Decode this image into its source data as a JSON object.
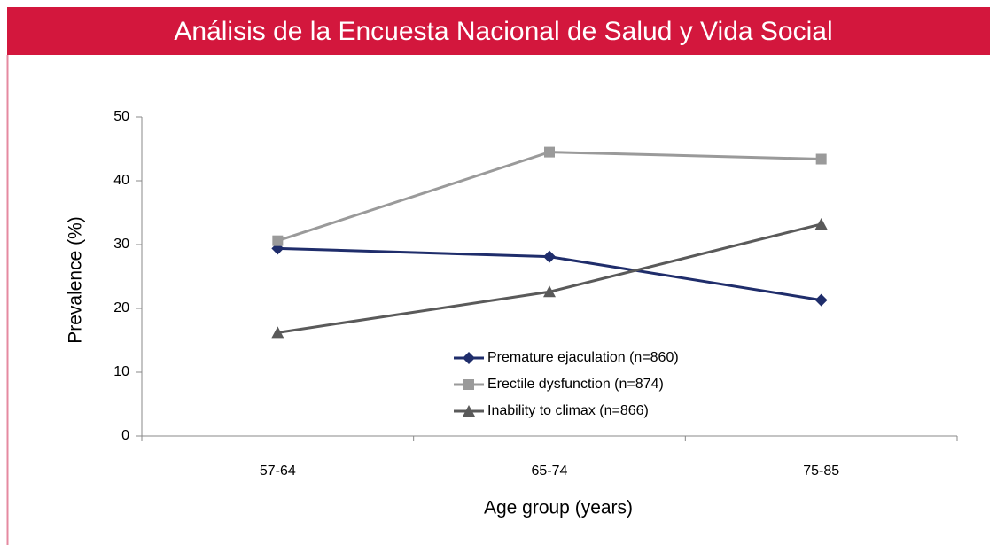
{
  "chart_data": {
    "type": "line",
    "title": "Análisis de la Encuesta Nacional de Salud y Vida Social",
    "x_label": "Age group (years)",
    "y_label": "Prevalence (%)",
    "categories": [
      "57-64",
      "65-74",
      "75-85"
    ],
    "series": [
      {
        "name": "Premature ejaculation (n=860)",
        "color": "#1f2d6b",
        "marker": "diamond",
        "values": [
          29.4,
          28.1,
          21.3
        ]
      },
      {
        "name": "Erectile dysfunction (n=874)",
        "color": "#9a9a9a",
        "marker": "square",
        "values": [
          30.6,
          44.5,
          43.4
        ]
      },
      {
        "name": "Inability to climax (n=866)",
        "color": "#5a5a5a",
        "marker": "triangle",
        "values": [
          16.2,
          22.6,
          33.2
        ]
      }
    ],
    "ylim": [
      0,
      50
    ],
    "yticks": [
      0,
      10,
      20,
      30,
      40,
      50
    ],
    "grid": false
  }
}
